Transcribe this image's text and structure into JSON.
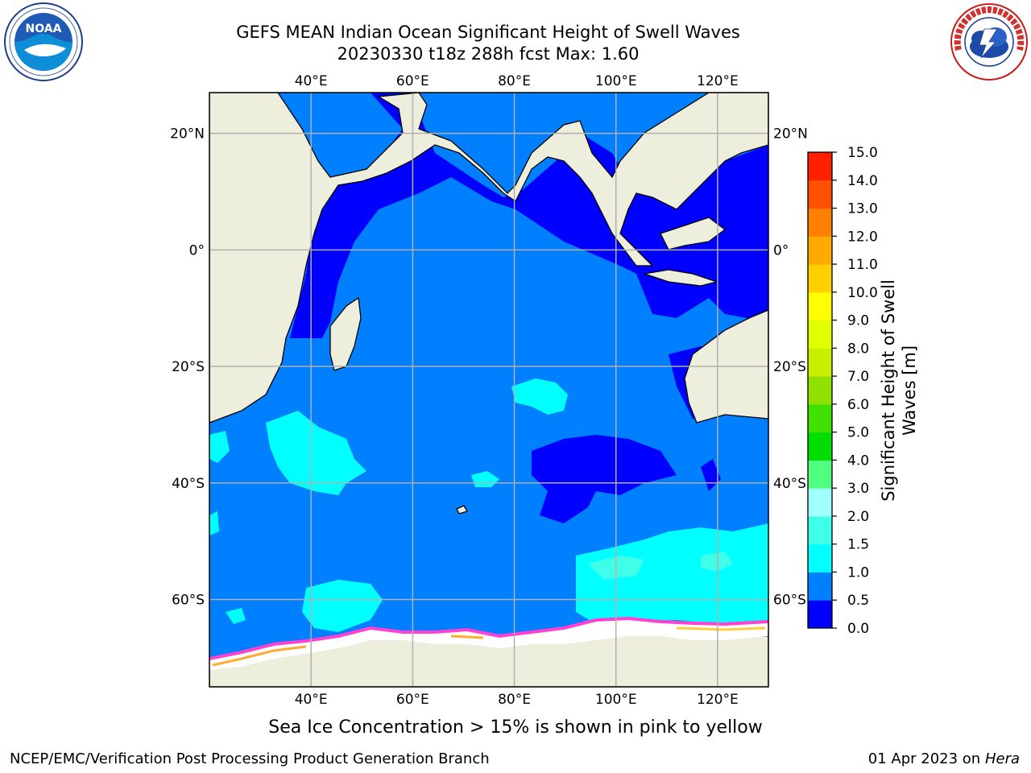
{
  "title": {
    "line1": "GEFS MEAN Indian Ocean Significant Height of Swell Waves",
    "line2": "20230330 t18z 288h fcst   Max: 1.60"
  },
  "caption": "Sea Ice Concentration > 15% is shown in pink to yellow",
  "footer": {
    "left": "NCEP/EMC/Verification Post Processing Product Generation Branch",
    "right_date": "01 Apr 2023 on",
    "right_machine": "Hera"
  },
  "logos": {
    "left": {
      "name": "noaa-logo",
      "text": "NOAA"
    },
    "right": {
      "name": "national-weather-service-logo",
      "text": "NATIONAL WEATHER SERVICE"
    }
  },
  "map": {
    "lon_range": [
      20,
      130
    ],
    "lat_range": [
      -75,
      27
    ],
    "lon_ticks": [
      {
        "value": 40,
        "label": "40°E"
      },
      {
        "value": 60,
        "label": "60°E"
      },
      {
        "value": 80,
        "label": "80°E"
      },
      {
        "value": 100,
        "label": "100°E"
      },
      {
        "value": 120,
        "label": "120°E"
      }
    ],
    "lat_ticks": [
      {
        "value": 20,
        "label": "20°N"
      },
      {
        "value": 0,
        "label": "0°"
      },
      {
        "value": -20,
        "label": "20°S"
      },
      {
        "value": -40,
        "label": "40°S"
      },
      {
        "value": -60,
        "label": "60°S"
      }
    ],
    "grid": true,
    "colors": {
      "land": "#eeeedd",
      "gridline": "#b0b0b0",
      "coast": "#000000",
      "ice": "#ffffff"
    }
  },
  "colorbar": {
    "label": "Significant Height of Swell Waves [m]",
    "label_line1": "Significant Height of Swell",
    "label_line2": "Waves [m]",
    "levels": [
      "0.0",
      "0.5",
      "1.0",
      "1.5",
      "2.0",
      "3.0",
      "4.0",
      "5.0",
      "6.0",
      "7.0",
      "8.0",
      "9.0",
      "10.0",
      "11.0",
      "12.0",
      "13.0",
      "14.0",
      "15.0"
    ],
    "colors": [
      "#0000ff",
      "#0080ff",
      "#00ffff",
      "#40ffe8",
      "#a0ffff",
      "#50ff80",
      "#00dd00",
      "#40e000",
      "#90e000",
      "#c8ee00",
      "#e0ff00",
      "#ffff00",
      "#ffd000",
      "#ffaa00",
      "#ff8000",
      "#ff5000",
      "#ff2000"
    ]
  }
}
